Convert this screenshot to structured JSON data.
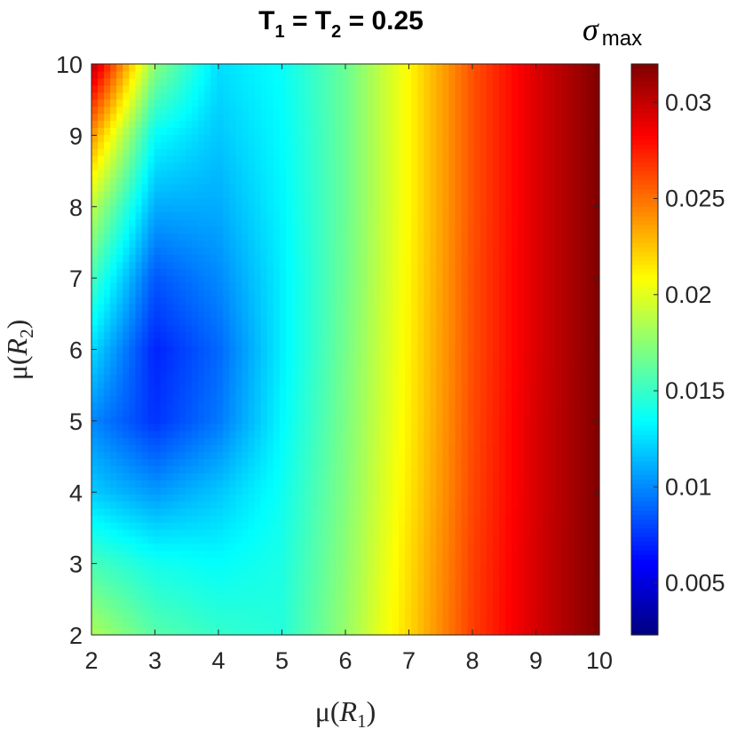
{
  "chart_data": {
    "type": "heatmap",
    "title": {
      "text": "T",
      "sub1": "1",
      "mid": " = T",
      "sub2": "2",
      "tail": " = 0.25"
    },
    "xlabel": {
      "func": "μ(",
      "var": "R",
      "sub": "1",
      "close": ")"
    },
    "ylabel": {
      "func": "μ(",
      "var": "R",
      "sub": "2",
      "close": ")"
    },
    "x_range": [
      2,
      10
    ],
    "y_range": [
      2,
      10
    ],
    "x_ticks": [
      "2",
      "3",
      "4",
      "5",
      "6",
      "7",
      "8",
      "9",
      "10"
    ],
    "y_ticks": [
      "2",
      "3",
      "4",
      "5",
      "6",
      "7",
      "8",
      "9",
      "10"
    ],
    "grid": false,
    "colormap": "jet",
    "colorbar": {
      "title": {
        "symbol": "σ",
        "sub": "max"
      },
      "range": [
        0.0023,
        0.032
      ],
      "ticks": [
        {
          "value": 0.005,
          "label": "0.005"
        },
        {
          "value": 0.01,
          "label": "0.01"
        },
        {
          "value": 0.015,
          "label": "0.015"
        },
        {
          "value": 0.02,
          "label": "0.02"
        },
        {
          "value": 0.025,
          "label": "0.025"
        },
        {
          "value": 0.03,
          "label": "0.03"
        }
      ]
    },
    "grid_x": [
      2,
      3,
      4,
      5,
      6,
      7,
      8,
      9,
      10
    ],
    "grid_y": [
      2,
      3,
      4,
      5,
      6,
      7,
      8,
      9,
      10
    ],
    "values": [
      [
        0.0185,
        0.016,
        0.015,
        0.0145,
        0.0178,
        0.022,
        0.0265,
        0.0295,
        0.032
      ],
      [
        0.0155,
        0.014,
        0.0135,
        0.0142,
        0.0175,
        0.0218,
        0.0264,
        0.0295,
        0.032
      ],
      [
        0.012,
        0.0105,
        0.0118,
        0.0138,
        0.0172,
        0.0215,
        0.0262,
        0.0294,
        0.032
      ],
      [
        0.01,
        0.0075,
        0.0095,
        0.0133,
        0.017,
        0.0213,
        0.0261,
        0.0294,
        0.032
      ],
      [
        0.0125,
        0.007,
        0.009,
        0.013,
        0.0168,
        0.0212,
        0.026,
        0.0293,
        0.032
      ],
      [
        0.0155,
        0.0085,
        0.01,
        0.013,
        0.0166,
        0.0211,
        0.026,
        0.0293,
        0.032
      ],
      [
        0.019,
        0.011,
        0.011,
        0.0132,
        0.0165,
        0.021,
        0.0259,
        0.0293,
        0.032
      ],
      [
        0.024,
        0.0135,
        0.0118,
        0.0134,
        0.0165,
        0.021,
        0.0259,
        0.0293,
        0.032
      ],
      [
        0.0305,
        0.0175,
        0.0125,
        0.0136,
        0.0165,
        0.021,
        0.0259,
        0.0293,
        0.032
      ]
    ]
  }
}
